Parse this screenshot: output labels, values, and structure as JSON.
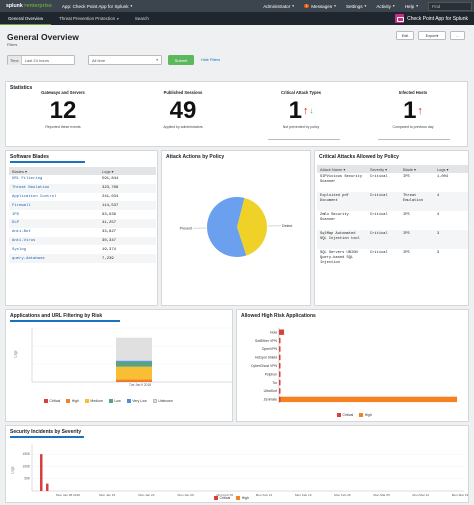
{
  "topbar": {
    "logo_main": "splunk",
    "logo_sub": ">enterprise",
    "app_menu": "App: Check Point App for Splunk",
    "menus": [
      "Administrator",
      "Messages",
      "Settings",
      "Activity",
      "Help"
    ],
    "messages_badge": "1",
    "find_placeholder": "Find"
  },
  "nav": {
    "items": [
      "General Overview",
      "Threat Prevention Protection",
      "Search"
    ],
    "brand": "Check Point App for Splunk"
  },
  "header": {
    "title": "General Overview",
    "edit": "Edit",
    "export": "Export",
    "more": "...",
    "filters_label": "Filters"
  },
  "filters": {
    "time_label": "Time",
    "time_value": "Last 24 hours",
    "range_value": "All time",
    "submit": "Submit",
    "hide_filters": "Hide Filters"
  },
  "statistics": {
    "title": "Statistics",
    "items": [
      {
        "label": "Gateways and Servers",
        "value": "12",
        "caption": "Reported these events",
        "color": "#111111"
      },
      {
        "label": "Published Sessions",
        "value": "49",
        "caption": "Applied by administrators",
        "color": "#111111"
      },
      {
        "label": "Critical Attack Types",
        "value": "1",
        "caption": "Not prevented by policy",
        "color": "#d9261c"
      },
      {
        "label": "Infected Hosts",
        "value": "1",
        "caption": "Compared to previous day",
        "color": "#d9261c"
      }
    ]
  },
  "software_blades": {
    "title": "Software Blades",
    "headers": [
      "Blades",
      "Logs"
    ],
    "rows": [
      [
        "URL Filtering",
        "591,844"
      ],
      [
        "Threat Emulation",
        "323,768"
      ],
      [
        "Application Control",
        "241,034"
      ],
      [
        "Firewall",
        "114,537"
      ],
      [
        "IPS",
        "93,936"
      ],
      [
        "DLP",
        "41,257"
      ],
      [
        "Anti-Bot",
        "33,827"
      ],
      [
        "Anti-Virus",
        "30,347"
      ],
      [
        "Syslog",
        "19,374"
      ],
      [
        "query-database",
        "7,239"
      ]
    ]
  },
  "attack_actions": {
    "title": "Attack Actions by Policy",
    "slices": [
      {
        "label": "Detect",
        "value": 41,
        "color": "#f0d127"
      },
      {
        "label": "Prevent",
        "value": 59,
        "color": "#6ba0ee"
      }
    ]
  },
  "critical_attacks": {
    "title": "Critical Attacks Allowed by Policy",
    "headers": [
      "Attack Name",
      "Severity",
      "Blade",
      "Logs"
    ],
    "rows": [
      [
        "SIPVicious Security Scanner",
        "Critical",
        "IPS",
        "1,004"
      ],
      [
        "Exploited pdf Document",
        "Critical",
        "Threat Emulation",
        "4"
      ],
      [
        "ZmEu Security Scanner",
        "Critical",
        "IPS",
        "4"
      ],
      [
        "SqlMap Automated SQL Injection tool",
        "Critical",
        "IPS",
        "3"
      ],
      [
        "SQL Servers UNION Query-based SQL Injection",
        "Critical",
        "IPS",
        "3"
      ]
    ]
  },
  "app_url": {
    "title": "Applications and URL Filtering by Risk",
    "ylabel": "Logs",
    "x_label": "Tue Jan 9 2018",
    "chart_data": {
      "type": "bar",
      "categories": [
        "Tue Jan 9 2018"
      ],
      "series": [
        {
          "name": "Critical",
          "values": [
            150
          ],
          "color": "#d93f3c"
        },
        {
          "name": "High",
          "values": [
            800
          ],
          "color": "#f58220"
        },
        {
          "name": "Medium",
          "values": [
            4700
          ],
          "color": "#f8be34"
        },
        {
          "name": "Low",
          "values": [
            1800
          ],
          "color": "#5ba37f"
        },
        {
          "name": "Very Low",
          "values": [
            450
          ],
          "color": "#4a90d9"
        },
        {
          "name": "Unknown",
          "values": [
            8500
          ],
          "color": "#e0e0e0"
        }
      ]
    }
  },
  "high_risk": {
    "title": "Allowed High Risk Applications",
    "chart_data": {
      "type": "bar",
      "categories": [
        "Hola",
        "SoftEther VPN",
        "OpenVPN",
        "Hotspot Shield",
        "CyberGhost VPN",
        "Psiphon",
        "Tor",
        "UltraSurf",
        "Zenmate"
      ],
      "series": [
        {
          "name": "Critical",
          "values": [
            30,
            8,
            6,
            5,
            5,
            4,
            4,
            3,
            3
          ],
          "color": "#d93f3c"
        },
        {
          "name": "High",
          "values": [
            0,
            0,
            0,
            0,
            0,
            0,
            0,
            0,
            1050
          ],
          "color": "#f58220"
        }
      ]
    }
  },
  "security_incidents": {
    "title": "Security Incidents by Severity",
    "ylabel": "Logs",
    "yticks": [
      "150K",
      "100K",
      "50K"
    ],
    "xticks": [
      "Mon Jan 08 2018",
      "Mon Jan 15",
      "Mon Jan 22",
      "Mon Jan 29",
      "Mon Feb 05",
      "Mon Feb 12",
      "Mon Feb 19",
      "Mon Feb 26",
      "Mon Mar 05",
      "Mon Mar 12",
      "Mon Mar 19"
    ],
    "chart_data": {
      "type": "bar",
      "categories": [
        "Jan 9",
        "Jan 10"
      ],
      "series": [
        {
          "name": "Critical",
          "values": [
            150000,
            30000
          ],
          "color": "#d93f3c"
        },
        {
          "name": "High",
          "values": [
            0,
            0
          ],
          "color": "#f58220"
        }
      ]
    }
  }
}
